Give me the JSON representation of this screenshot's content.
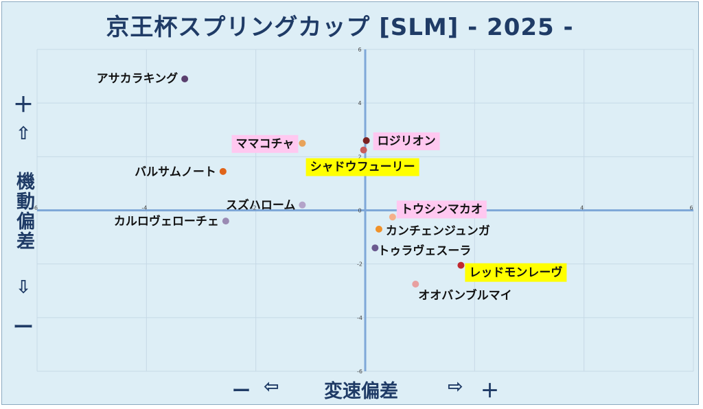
{
  "chart_data": {
    "type": "scatter",
    "title": "京王杯スプリングカップ [SLM]  - 2025 -",
    "xlabel": "変速偏差",
    "ylabel": "機動偏差",
    "xlim": [
      -6,
      6
    ],
    "ylim": [
      -6,
      6
    ],
    "xticks": [
      -6,
      -4,
      -2,
      0,
      2,
      4,
      6
    ],
    "yticks": [
      -6,
      -4,
      -2,
      0,
      2,
      4,
      6
    ],
    "grid": true,
    "points": [
      {
        "name": "アサカラキング",
        "x": -3.3,
        "y": 4.9,
        "color": "#5a3f6e",
        "highlight": ""
      },
      {
        "name": "ママコチャ",
        "x": -1.15,
        "y": 2.5,
        "color": "#e8a35a",
        "highlight": "#ffc8f0"
      },
      {
        "name": "ロジリオン",
        "x": 0.02,
        "y": 2.6,
        "color": "#7b2222",
        "highlight": "#ffc8f0"
      },
      {
        "name": "シャドウフューリー",
        "x": -0.03,
        "y": 2.25,
        "color": "#c95c5c",
        "highlight": "#ffff00"
      },
      {
        "name": "バルサムノート",
        "x": -2.6,
        "y": 1.45,
        "color": "#e0641a",
        "highlight": ""
      },
      {
        "name": "スズハローム",
        "x": -1.15,
        "y": 0.2,
        "color": "#b3a3c9",
        "highlight": ""
      },
      {
        "name": "カルロヴェローチェ",
        "x": -2.55,
        "y": -0.4,
        "color": "#9a8ab3",
        "highlight": ""
      },
      {
        "name": "トウシンマカオ",
        "x": 0.5,
        "y": -0.25,
        "color": "#f5b08a",
        "highlight": "#ffc8f0"
      },
      {
        "name": "カンチェンジュンガ",
        "x": 0.25,
        "y": -0.7,
        "color": "#f0922a",
        "highlight": ""
      },
      {
        "name": "トゥラヴェスーラ",
        "x": 0.18,
        "y": -1.4,
        "color": "#6b5a8f",
        "highlight": ""
      },
      {
        "name": "レッドモンレーヴ",
        "x": 1.75,
        "y": -2.05,
        "color": "#c0282f",
        "highlight": "#ffff00"
      },
      {
        "name": "オオバンブルマイ",
        "x": 0.92,
        "y": -2.75,
        "color": "#e8a0a0",
        "highlight": ""
      }
    ]
  },
  "axis_markers": {
    "y_plus": "＋",
    "y_up": "⇧",
    "y_down": "⇩",
    "y_minus": "ー",
    "x_minus": "ー",
    "x_left": "⇦",
    "x_right": "⇨",
    "x_plus": "＋"
  }
}
